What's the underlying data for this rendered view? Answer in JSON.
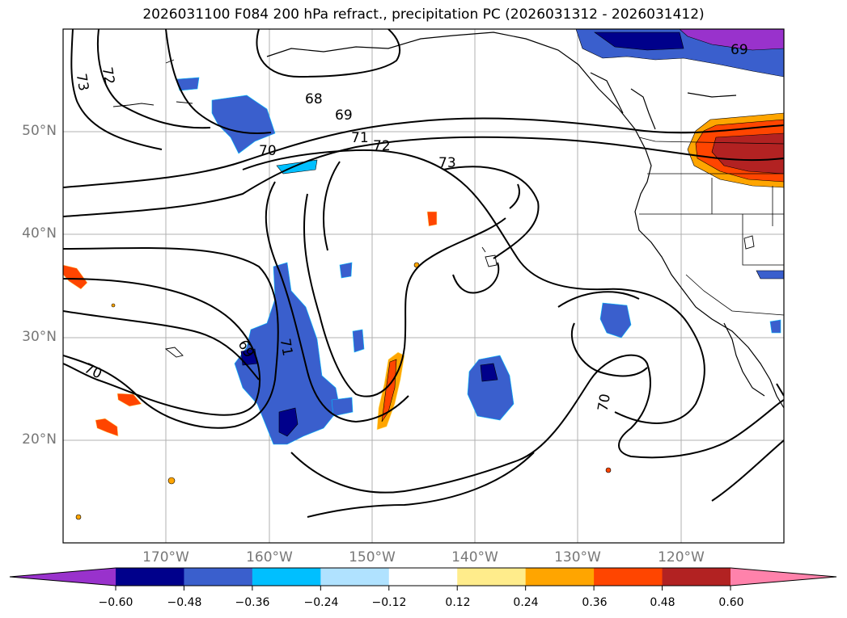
{
  "title": "2026031100 F084 200 hPa refract., precipitation PC (2026031312 - 2026031412)",
  "map": {
    "lat_labels": [
      "50°N",
      "40°N",
      "30°N",
      "20°N"
    ],
    "lon_labels": [
      "170°W",
      "160°W",
      "150°W",
      "140°W",
      "130°W",
      "120°W"
    ],
    "contour_labels": [
      "73",
      "72",
      "68",
      "69",
      "70",
      "71",
      "72",
      "73",
      "69",
      "69",
      "71",
      "70",
      "70"
    ]
  },
  "colorbar": {
    "ticks": [
      "−0.60",
      "−0.48",
      "−0.36",
      "−0.24",
      "−0.12",
      "0.12",
      "0.24",
      "0.36",
      "0.48",
      "0.60"
    ],
    "colors": [
      "#9932CC",
      "#00008B",
      "#3A5FCD",
      "#00BFFF",
      "#B0E2FF",
      "#FFFFFF",
      "#FFEC8B",
      "#FFA500",
      "#FF4500",
      "#B22222",
      "#FF82AB"
    ]
  }
}
